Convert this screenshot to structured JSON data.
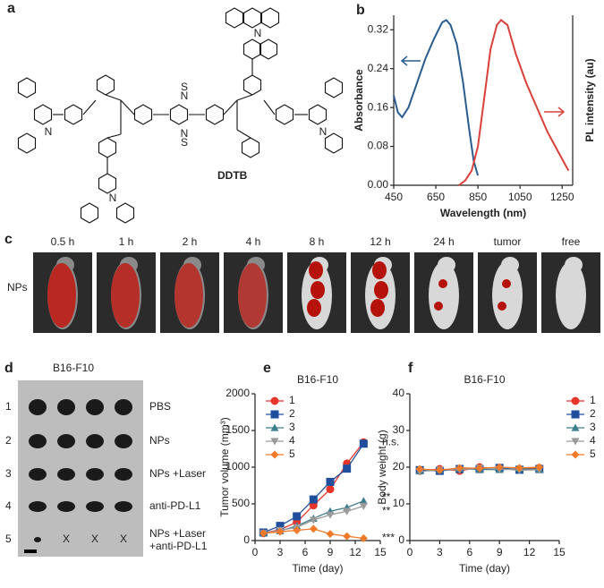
{
  "panel_labels": [
    "a",
    "b",
    "c",
    "d",
    "e",
    "f"
  ],
  "structure": {
    "name": "DDTB",
    "atoms": [
      "N",
      "N",
      "N",
      "N",
      "N",
      "N",
      "S",
      "S"
    ]
  },
  "imaging": {
    "row_label": "NPs",
    "columns": [
      "0.5 h",
      "1 h",
      "2 h",
      "4 h",
      "8 h",
      "12 h",
      "24 h",
      "tumor",
      "free"
    ]
  },
  "tumor_photo": {
    "title": "B16-F10",
    "rows": [
      "1",
      "2",
      "3",
      "4",
      "5"
    ],
    "treatments": [
      "PBS",
      "NPs",
      "NPs +Laser",
      "anti-PD-L1",
      [
        "NPs +Laser",
        "+anti-PD-L1"
      ]
    ],
    "marks": [
      "X",
      "X",
      "X"
    ]
  },
  "chart_data": [
    {
      "type": "line",
      "xlabel": "Wavelength (nm)",
      "ylabel": "Absorbance",
      "y2label": "PL intensity (au)",
      "xlim": [
        450,
        1300
      ],
      "ylim": [
        0,
        0.35
      ],
      "xticks": [
        450,
        650,
        850,
        1050,
        1250
      ],
      "yticks": [
        {
          "value": 0,
          "label": "0.00"
        },
        {
          "value": 0.08,
          "label": "0.08"
        },
        {
          "value": 0.16,
          "label": "0.16"
        },
        {
          "value": 0.24,
          "label": "0.24"
        },
        {
          "value": 0.32,
          "label": "0.32"
        }
      ],
      "series": [
        {
          "color": "#2a5d8f",
          "x": [
            450,
            470,
            490,
            520,
            560,
            600,
            640,
            680,
            700,
            720,
            750,
            780,
            810,
            830,
            850
          ],
          "values": [
            0.185,
            0.15,
            0.14,
            0.16,
            0.21,
            0.26,
            0.3,
            0.335,
            0.34,
            0.33,
            0.29,
            0.21,
            0.11,
            0.05,
            0.02
          ]
        },
        {
          "color": "#d9413a",
          "x": [
            760,
            790,
            820,
            850,
            880,
            910,
            940,
            960,
            990,
            1030,
            1080,
            1130,
            1180,
            1230,
            1280
          ],
          "values": [
            0.0,
            0.01,
            0.03,
            0.08,
            0.18,
            0.28,
            0.33,
            0.34,
            0.33,
            0.27,
            0.21,
            0.16,
            0.11,
            0.07,
            0.03
          ]
        }
      ]
    },
    {
      "type": "line",
      "title": "B16-F10",
      "xlabel": "Time (day)",
      "ylabel": "Tumor volume (mm³)",
      "xlim": [
        0,
        15
      ],
      "ylim": [
        0,
        2000
      ],
      "xticks": [
        0,
        3,
        6,
        9,
        12,
        15
      ],
      "yticks": [
        0,
        500,
        1000,
        1500,
        2000
      ],
      "legend": "upper left",
      "x": [
        1,
        3,
        5,
        7,
        9,
        11,
        13
      ],
      "series": [
        {
          "name": "1",
          "color": "#e8352b",
          "marker": "circle",
          "values": [
            100,
            150,
            250,
            480,
            700,
            1050,
            1340
          ]
        },
        {
          "name": "2",
          "color": "#1f4e9c",
          "marker": "square",
          "values": [
            110,
            200,
            330,
            560,
            800,
            980,
            1320
          ]
        },
        {
          "name": "3",
          "color": "#3f7d8f",
          "marker": "triangle",
          "values": [
            100,
            130,
            200,
            300,
            400,
            450,
            540
          ]
        },
        {
          "name": "4",
          "color": "#9a9a9a",
          "marker": "triangle-down",
          "values": [
            100,
            140,
            180,
            280,
            350,
            400,
            470
          ]
        },
        {
          "name": "5",
          "color": "#f07a2a",
          "marker": "diamond",
          "values": [
            100,
            120,
            140,
            160,
            90,
            60,
            30
          ]
        }
      ],
      "annotations": [
        "n.s.",
        "**",
        "**",
        "***"
      ]
    },
    {
      "type": "line",
      "title": "B16-F10",
      "xlabel": "Time (day)",
      "ylabel": "Body weight (g)",
      "xlim": [
        0,
        15
      ],
      "ylim": [
        0,
        40
      ],
      "xticks": [
        0,
        3,
        6,
        9,
        12,
        15
      ],
      "yticks": [
        0,
        10,
        20,
        30,
        40
      ],
      "legend": "right",
      "x": [
        1,
        3,
        5,
        7,
        9,
        11,
        13
      ],
      "series": [
        {
          "name": "1",
          "color": "#e8352b",
          "marker": "circle",
          "values": [
            19,
            19.5,
            19,
            20,
            19.5,
            19.5,
            19.8
          ]
        },
        {
          "name": "2",
          "color": "#1f4e9c",
          "marker": "square",
          "values": [
            19.2,
            19,
            19.5,
            19.5,
            19.8,
            19.3,
            19.5
          ]
        },
        {
          "name": "3",
          "color": "#3f7d8f",
          "marker": "triangle",
          "values": [
            19,
            19.2,
            19.6,
            19.4,
            19.3,
            19.6,
            19.4
          ]
        },
        {
          "name": "4",
          "color": "#9a9a9a",
          "marker": "triangle-down",
          "values": [
            18.8,
            19.3,
            19.3,
            19.8,
            19.5,
            19.2,
            19.3
          ]
        },
        {
          "name": "5",
          "color": "#f07a2a",
          "marker": "diamond",
          "values": [
            19.5,
            19.2,
            19.8,
            19.7,
            20,
            19.8,
            20
          ]
        }
      ]
    }
  ]
}
